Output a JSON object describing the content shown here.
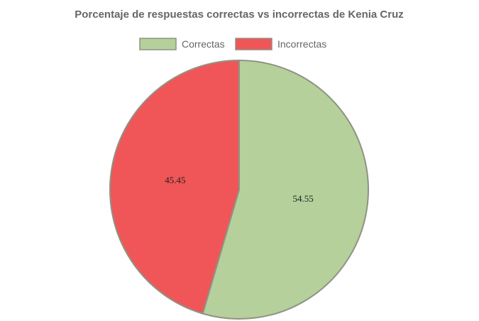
{
  "chart_data": {
    "type": "pie",
    "title": "Porcentaje de respuestas correctas vs incorrectas de Kenia Cruz",
    "legend_position": "top",
    "slices": [
      {
        "label": "Correctas",
        "value": 54.55,
        "color": "#b5d09b",
        "value_label": "54.55"
      },
      {
        "label": "Incorrectas",
        "value": 45.45,
        "color": "#f05658",
        "value_label": "45.45"
      }
    ],
    "border_color": "#8f9384"
  }
}
